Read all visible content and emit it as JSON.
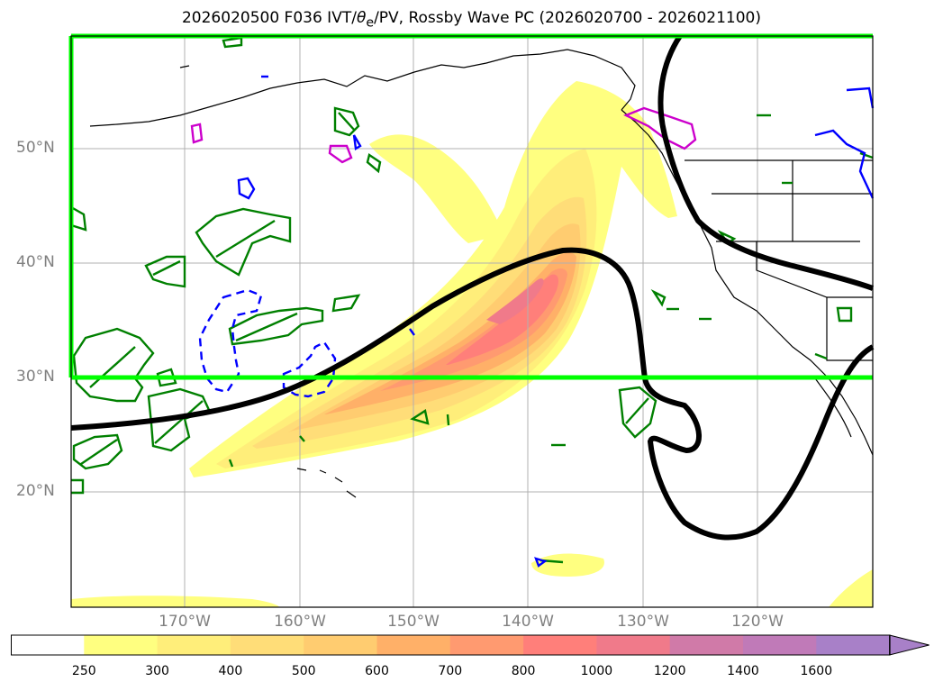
{
  "title": {
    "prefix": "2026020500 F036 IVT/",
    "theta": "θ",
    "sub": "e",
    "suffix": "/PV, Rossby Wave PC (2026020700 - 2026021100)"
  },
  "lat_labels": [
    "20°N",
    "30°N",
    "40°N",
    "50°N"
  ],
  "lon_labels": [
    "170°W",
    "160°W",
    "150°W",
    "140°W",
    "130°W",
    "120°W"
  ],
  "colorbar": {
    "levels": [
      "250",
      "300",
      "400",
      "500",
      "600",
      "700",
      "800",
      "1000",
      "1200",
      "1400",
      "1600"
    ],
    "colors": [
      "#ffffff",
      "#ffff80",
      "#ffee7a",
      "#ffdd78",
      "#ffcc70",
      "#ffb068",
      "#ff9a70",
      "#ff7f7a",
      "#f07a8a",
      "#d07aa8",
      "#c07ab8",
      "#a880c8"
    ]
  },
  "colors": {
    "box": "#00ff00",
    "pv_contour": "#000000",
    "theta_green": "#008000",
    "blue": "#0000ff",
    "magenta": "#cc00cc"
  }
}
